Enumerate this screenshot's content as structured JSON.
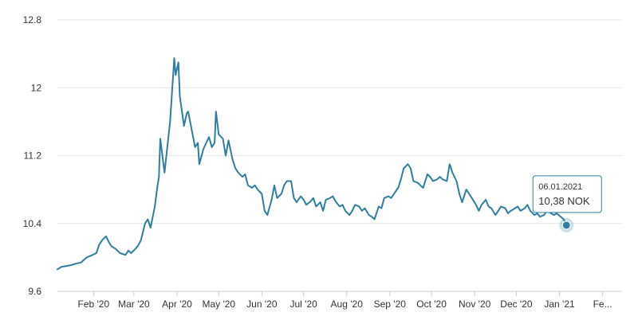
{
  "chart_data": {
    "type": "line",
    "title": "",
    "xlabel": "",
    "ylabel": "",
    "x_start": "2020-01-06",
    "x_end": "2021-02-15",
    "ylim": [
      9.6,
      12.8
    ],
    "y_ticks": [
      {
        "value": 9.6,
        "label": "9.6"
      },
      {
        "value": 10.4,
        "label": "10.4"
      },
      {
        "value": 11.2,
        "label": "11.2"
      },
      {
        "value": 12,
        "label": "12"
      },
      {
        "value": 12.8,
        "label": "12.8"
      }
    ],
    "x_ticks": [
      {
        "date": "2020-02-01",
        "label": "Feb '20"
      },
      {
        "date": "2020-03-01",
        "label": "Mar '20"
      },
      {
        "date": "2020-04-01",
        "label": "Apr '20"
      },
      {
        "date": "2020-05-01",
        "label": "May '20"
      },
      {
        "date": "2020-06-01",
        "label": "Jun '20"
      },
      {
        "date": "2020-07-01",
        "label": "Jul '20"
      },
      {
        "date": "2020-08-01",
        "label": "Aug '20"
      },
      {
        "date": "2020-09-01",
        "label": "Sep '20"
      },
      {
        "date": "2020-10-01",
        "label": "Oct '20"
      },
      {
        "date": "2020-11-01",
        "label": "Nov '20"
      },
      {
        "date": "2020-12-01",
        "label": "Dec '20"
      },
      {
        "date": "2021-01-01",
        "label": "Jan '21"
      },
      {
        "date": "2021-02-01",
        "label": "Fe..."
      }
    ],
    "grid": true,
    "series_color": "#2f7ea1",
    "series": [
      {
        "name": "",
        "points": [
          [
            "2020-01-06",
            9.86
          ],
          [
            "2020-01-09",
            9.89
          ],
          [
            "2020-01-13",
            9.9
          ],
          [
            "2020-01-16",
            9.91
          ],
          [
            "2020-01-20",
            9.93
          ],
          [
            "2020-01-23",
            9.94
          ],
          [
            "2020-01-27",
            10.0
          ],
          [
            "2020-01-30",
            10.02
          ],
          [
            "2020-02-03",
            10.05
          ],
          [
            "2020-02-05",
            10.15
          ],
          [
            "2020-02-07",
            10.2
          ],
          [
            "2020-02-10",
            10.25
          ],
          [
            "2020-02-12",
            10.18
          ],
          [
            "2020-02-14",
            10.13
          ],
          [
            "2020-02-17",
            10.1
          ],
          [
            "2020-02-20",
            10.05
          ],
          [
            "2020-02-24",
            10.03
          ],
          [
            "2020-02-26",
            10.08
          ],
          [
            "2020-02-28",
            10.05
          ],
          [
            "2020-03-02",
            10.1
          ],
          [
            "2020-03-04",
            10.14
          ],
          [
            "2020-03-06",
            10.2
          ],
          [
            "2020-03-09",
            10.4
          ],
          [
            "2020-03-11",
            10.45
          ],
          [
            "2020-03-13",
            10.35
          ],
          [
            "2020-03-16",
            10.6
          ],
          [
            "2020-03-18",
            10.85
          ],
          [
            "2020-03-19",
            10.95
          ],
          [
            "2020-03-20",
            11.4
          ],
          [
            "2020-03-23",
            11.0
          ],
          [
            "2020-03-25",
            11.3
          ],
          [
            "2020-03-27",
            11.6
          ],
          [
            "2020-03-30",
            12.35
          ],
          [
            "2020-03-31",
            12.15
          ],
          [
            "2020-04-02",
            12.3
          ],
          [
            "2020-04-03",
            11.9
          ],
          [
            "2020-04-06",
            11.55
          ],
          [
            "2020-04-08",
            11.7
          ],
          [
            "2020-04-09",
            11.72
          ],
          [
            "2020-04-14",
            11.3
          ],
          [
            "2020-04-16",
            11.35
          ],
          [
            "2020-04-17",
            11.1
          ],
          [
            "2020-04-20",
            11.28
          ],
          [
            "2020-04-22",
            11.35
          ],
          [
            "2020-04-24",
            11.42
          ],
          [
            "2020-04-26",
            11.3
          ],
          [
            "2020-04-28",
            11.35
          ],
          [
            "2020-04-29",
            11.72
          ],
          [
            "2020-05-01",
            11.45
          ],
          [
            "2020-05-04",
            11.4
          ],
          [
            "2020-05-06",
            11.2
          ],
          [
            "2020-05-08",
            11.38
          ],
          [
            "2020-05-11",
            11.15
          ],
          [
            "2020-05-13",
            11.05
          ],
          [
            "2020-05-15",
            11.0
          ],
          [
            "2020-05-18",
            10.95
          ],
          [
            "2020-05-20",
            10.98
          ],
          [
            "2020-05-22",
            10.85
          ],
          [
            "2020-05-25",
            10.82
          ],
          [
            "2020-05-27",
            10.85
          ],
          [
            "2020-05-29",
            10.8
          ],
          [
            "2020-06-01",
            10.75
          ],
          [
            "2020-06-03",
            10.55
          ],
          [
            "2020-06-05",
            10.5
          ],
          [
            "2020-06-08",
            10.68
          ],
          [
            "2020-06-10",
            10.85
          ],
          [
            "2020-06-12",
            10.7
          ],
          [
            "2020-06-15",
            10.75
          ],
          [
            "2020-06-17",
            10.85
          ],
          [
            "2020-06-19",
            10.9
          ],
          [
            "2020-06-22",
            10.9
          ],
          [
            "2020-06-24",
            10.7
          ],
          [
            "2020-06-26",
            10.65
          ],
          [
            "2020-06-29",
            10.72
          ],
          [
            "2020-07-01",
            10.68
          ],
          [
            "2020-07-03",
            10.62
          ],
          [
            "2020-07-06",
            10.66
          ],
          [
            "2020-07-08",
            10.7
          ],
          [
            "2020-07-10",
            10.6
          ],
          [
            "2020-07-13",
            10.65
          ],
          [
            "2020-07-15",
            10.55
          ],
          [
            "2020-07-17",
            10.68
          ],
          [
            "2020-07-20",
            10.7
          ],
          [
            "2020-07-22",
            10.72
          ],
          [
            "2020-07-24",
            10.66
          ],
          [
            "2020-07-27",
            10.6
          ],
          [
            "2020-07-29",
            10.62
          ],
          [
            "2020-07-31",
            10.55
          ],
          [
            "2020-08-03",
            10.5
          ],
          [
            "2020-08-05",
            10.55
          ],
          [
            "2020-08-07",
            10.62
          ],
          [
            "2020-08-10",
            10.6
          ],
          [
            "2020-08-12",
            10.55
          ],
          [
            "2020-08-14",
            10.58
          ],
          [
            "2020-08-17",
            10.5
          ],
          [
            "2020-08-19",
            10.48
          ],
          [
            "2020-08-21",
            10.45
          ],
          [
            "2020-08-24",
            10.6
          ],
          [
            "2020-08-26",
            10.58
          ],
          [
            "2020-08-28",
            10.7
          ],
          [
            "2020-08-31",
            10.72
          ],
          [
            "2020-09-02",
            10.7
          ],
          [
            "2020-09-04",
            10.75
          ],
          [
            "2020-09-07",
            10.82
          ],
          [
            "2020-09-09",
            10.92
          ],
          [
            "2020-09-11",
            11.05
          ],
          [
            "2020-09-14",
            11.1
          ],
          [
            "2020-09-16",
            11.05
          ],
          [
            "2020-09-18",
            10.9
          ],
          [
            "2020-09-21",
            10.88
          ],
          [
            "2020-09-23",
            10.85
          ],
          [
            "2020-09-25",
            10.82
          ],
          [
            "2020-09-28",
            10.98
          ],
          [
            "2020-09-30",
            10.95
          ],
          [
            "2020-10-02",
            10.9
          ],
          [
            "2020-10-05",
            10.92
          ],
          [
            "2020-10-07",
            10.95
          ],
          [
            "2020-10-09",
            10.92
          ],
          [
            "2020-10-12",
            10.9
          ],
          [
            "2020-10-14",
            11.1
          ],
          [
            "2020-10-16",
            11.0
          ],
          [
            "2020-10-19",
            10.9
          ],
          [
            "2020-10-21",
            10.75
          ],
          [
            "2020-10-23",
            10.65
          ],
          [
            "2020-10-26",
            10.8
          ],
          [
            "2020-10-28",
            10.75
          ],
          [
            "2020-10-30",
            10.7
          ],
          [
            "2020-11-02",
            10.62
          ],
          [
            "2020-11-04",
            10.55
          ],
          [
            "2020-11-06",
            10.62
          ],
          [
            "2020-11-09",
            10.68
          ],
          [
            "2020-11-11",
            10.6
          ],
          [
            "2020-11-13",
            10.58
          ],
          [
            "2020-11-16",
            10.5
          ],
          [
            "2020-11-18",
            10.55
          ],
          [
            "2020-11-20",
            10.6
          ],
          [
            "2020-11-23",
            10.58
          ],
          [
            "2020-11-25",
            10.52
          ],
          [
            "2020-11-27",
            10.55
          ],
          [
            "2020-11-30",
            10.58
          ],
          [
            "2020-12-02",
            10.6
          ],
          [
            "2020-12-04",
            10.55
          ],
          [
            "2020-12-07",
            10.58
          ],
          [
            "2020-12-09",
            10.62
          ],
          [
            "2020-12-11",
            10.55
          ],
          [
            "2020-12-14",
            10.5
          ],
          [
            "2020-12-16",
            10.52
          ],
          [
            "2020-12-18",
            10.48
          ],
          [
            "2020-12-21",
            10.5
          ],
          [
            "2020-12-23",
            10.55
          ],
          [
            "2020-12-28",
            10.5
          ],
          [
            "2020-12-30",
            10.52
          ],
          [
            "2021-01-04",
            10.45
          ],
          [
            "2021-01-06",
            10.38
          ]
        ]
      }
    ],
    "tooltip": {
      "date": "06.01.2021",
      "value_label": "10,38 NOK",
      "point": [
        "2021-01-06",
        10.38
      ]
    }
  }
}
